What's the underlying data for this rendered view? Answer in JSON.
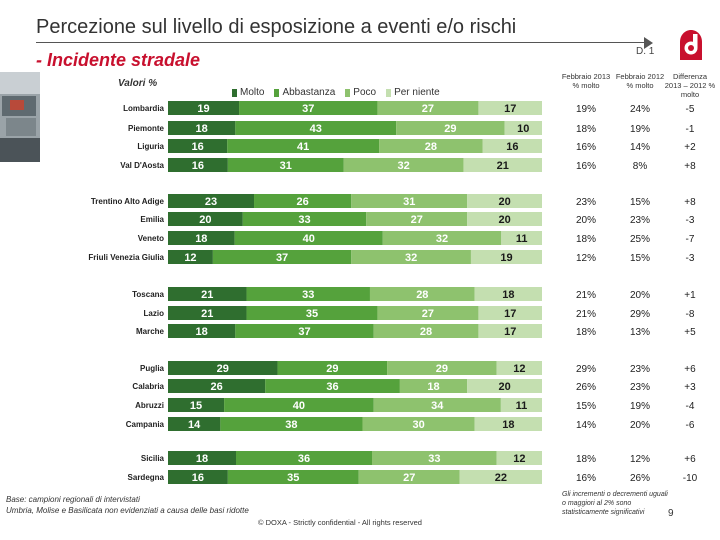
{
  "header": {
    "title": "Percezione sul livello di esposizione a eventi e/o rischi",
    "slide_code": "D. 1",
    "subtitle": "- Incidente stradale",
    "valori_label": "Valori %"
  },
  "columns": {
    "col1": "Febbraio 2013 % molto",
    "col2": "Febbraio 2012 % molto",
    "col3": "Differenza 2013 – 2012 % molto"
  },
  "footer": {
    "note_line1": "Base: campioni regionali di intervistati",
    "note_line2": "Umbria, Molise e Basilicata non evidenziati a causa delle basi ridotte",
    "copyright": "© DOXA - Strictly confidential - All rights reserved",
    "right_note": "Gli incrementi o decrementi uguali o maggiori al 2% sono statisticamente significativi",
    "page_number": "9"
  },
  "colors": {
    "molto": "#2f6e2f",
    "abbastanza": "#55a23c",
    "poco": "#8ec26e",
    "per_niente": "#c4dfb0",
    "accent_red": "#c8102e"
  },
  "chart_data": {
    "type": "bar",
    "orientation": "horizontal",
    "stacked": true,
    "title": "Percezione sul livello di esposizione a eventi e/o rischi",
    "subtitle": "Incidente stradale",
    "unit": "Valori %",
    "xlim": [
      0,
      100
    ],
    "legend": [
      "Molto",
      "Abbastanza",
      "Poco",
      "Per niente"
    ],
    "rows": [
      {
        "region": "Lombardia",
        "values": [
          19,
          37,
          27,
          17
        ],
        "feb2013": "19%",
        "feb2012": "24%",
        "diff": "-5"
      },
      {
        "region": "Piemonte",
        "values": [
          18,
          43,
          29,
          10
        ],
        "feb2013": "18%",
        "feb2012": "19%",
        "diff": "-1"
      },
      {
        "region": "Liguria",
        "values": [
          16,
          41,
          28,
          16
        ],
        "feb2013": "16%",
        "feb2012": "14%",
        "diff": "+2"
      },
      {
        "region": "Val D'Aosta",
        "values": [
          16,
          31,
          32,
          21
        ],
        "feb2013": "16%",
        "feb2012": "8%",
        "diff": "+8"
      },
      {
        "region": "Trentino Alto Adige",
        "values": [
          23,
          26,
          31,
          20
        ],
        "feb2013": "23%",
        "feb2012": "15%",
        "diff": "+8"
      },
      {
        "region": "Emilia",
        "values": [
          20,
          33,
          27,
          20
        ],
        "feb2013": "20%",
        "feb2012": "23%",
        "diff": "-3"
      },
      {
        "region": "Veneto",
        "values": [
          18,
          40,
          32,
          11
        ],
        "feb2013": "18%",
        "feb2012": "25%",
        "diff": "-7"
      },
      {
        "region": "Friuli Venezia Giulia",
        "values": [
          12,
          37,
          32,
          19
        ],
        "feb2013": "12%",
        "feb2012": "15%",
        "diff": "-3"
      },
      {
        "region": "Toscana",
        "values": [
          21,
          33,
          28,
          18
        ],
        "feb2013": "21%",
        "feb2012": "20%",
        "diff": "+1"
      },
      {
        "region": "Lazio",
        "values": [
          21,
          35,
          27,
          17
        ],
        "feb2013": "21%",
        "feb2012": "29%",
        "diff": "-8"
      },
      {
        "region": "Marche",
        "values": [
          18,
          37,
          28,
          17
        ],
        "feb2013": "18%",
        "feb2012": "13%",
        "diff": "+5"
      },
      {
        "region": "Puglia",
        "values": [
          29,
          29,
          29,
          12
        ],
        "feb2013": "29%",
        "feb2012": "23%",
        "diff": "+6"
      },
      {
        "region": "Calabria",
        "values": [
          26,
          36,
          18,
          20
        ],
        "feb2013": "26%",
        "feb2012": "23%",
        "diff": "+3"
      },
      {
        "region": "Abruzzi",
        "values": [
          15,
          40,
          34,
          11
        ],
        "feb2013": "15%",
        "feb2012": "19%",
        "diff": "-4"
      },
      {
        "region": "Campania",
        "values": [
          14,
          38,
          30,
          18
        ],
        "feb2013": "14%",
        "feb2012": "20%",
        "diff": "-6"
      },
      {
        "region": "Sicilia",
        "values": [
          18,
          36,
          33,
          12
        ],
        "feb2013": "18%",
        "feb2012": "12%",
        "diff": "+6"
      },
      {
        "region": "Sardegna",
        "values": [
          16,
          35,
          27,
          22
        ],
        "feb2013": "16%",
        "feb2012": "26%",
        "diff": "-10"
      }
    ]
  }
}
